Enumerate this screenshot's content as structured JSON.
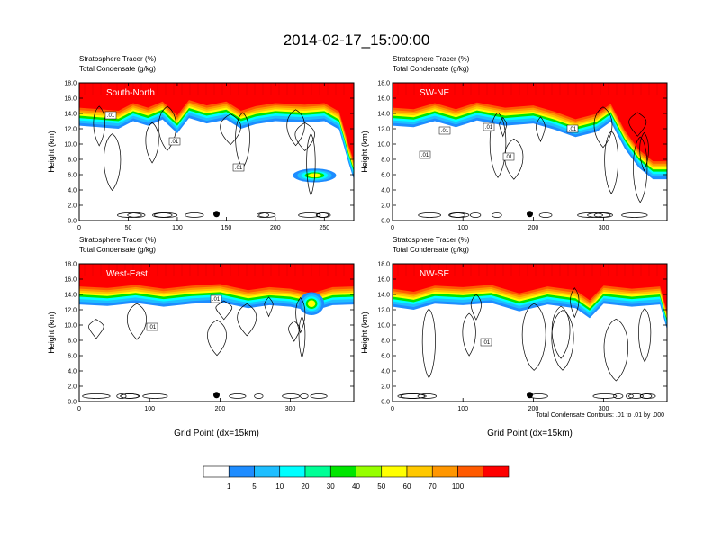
{
  "title": "2014-02-17_15:00:00",
  "footnote": "Total Condensate Contours: .01 to .01 by .000",
  "chart_data": {
    "type": "heatmap",
    "panels": [
      {
        "label": "South-North",
        "header_line1": "Stratosphere Tracer   (%)",
        "header_line2": "Total Condensate   (g/kg)",
        "ylabel": "Height (km)",
        "xlabel": "",
        "xlim": [
          0,
          280
        ],
        "xticks": [
          "0",
          "50",
          "100",
          "150",
          "200",
          "250"
        ],
        "ylim": [
          0,
          18
        ],
        "yticks": [
          "0.0",
          "2.0",
          "4.0",
          "6.0",
          "8.0",
          "10.0",
          "12.0",
          "14.0",
          "16.0",
          "18.0"
        ],
        "tropopause_km": [
          [
            0,
            15.0
          ],
          [
            20,
            14.8
          ],
          [
            40,
            14.6
          ],
          [
            55,
            15.6
          ],
          [
            70,
            15.0
          ],
          [
            85,
            15.8
          ],
          [
            100,
            14.0
          ],
          [
            112,
            16.0
          ],
          [
            130,
            15.3
          ],
          [
            150,
            15.8
          ],
          [
            165,
            14.6
          ],
          [
            180,
            15.2
          ],
          [
            200,
            15.6
          ],
          [
            230,
            15.4
          ],
          [
            250,
            15.6
          ],
          [
            265,
            14.5
          ],
          [
            275,
            10.0
          ],
          [
            280,
            8.0
          ]
        ],
        "blob": {
          "x": 240,
          "y_km": 5.9,
          "rx": 22,
          "ry_km": 0.9
        },
        "contour_labels": [
          ".01",
          ".01",
          ".01"
        ],
        "marker_x": 140
      },
      {
        "label": "SW-NE",
        "header_line1": "Stratosphere Tracer   (%)",
        "header_line2": "Total Condensate   (g/kg)",
        "ylabel": "Height (km)",
        "xlabel": "",
        "xlim": [
          0,
          390
        ],
        "xticks": [
          "0",
          "100",
          "200",
          "300"
        ],
        "ylim": [
          0,
          18
        ],
        "yticks": [
          "0.0",
          "2.0",
          "4.0",
          "6.0",
          "8.0",
          "10.0",
          "12.0",
          "14.0",
          "16.0",
          "18.0"
        ],
        "tropopause_km": [
          [
            0,
            15.0
          ],
          [
            30,
            14.8
          ],
          [
            60,
            15.6
          ],
          [
            90,
            14.8
          ],
          [
            120,
            15.7
          ],
          [
            160,
            15.0
          ],
          [
            200,
            15.3
          ],
          [
            230,
            14.5
          ],
          [
            260,
            13.5
          ],
          [
            290,
            14.2
          ],
          [
            310,
            15.5
          ],
          [
            330,
            12.0
          ],
          [
            350,
            9.5
          ],
          [
            370,
            8.0
          ],
          [
            390,
            8.0
          ]
        ],
        "blob": null,
        "contour_labels": [
          ".01",
          ".01",
          ".01",
          ".01",
          ".01"
        ],
        "marker_x": 195
      },
      {
        "label": "West-East",
        "header_line1": "Stratosphere Tracer   (%)",
        "header_line2": "Total Condensate   (g/kg)",
        "ylabel": "Height (km)",
        "xlabel": "Grid Point (dx=15km)",
        "xlim": [
          0,
          390
        ],
        "xticks": [
          "0",
          "100",
          "200",
          "300"
        ],
        "ylim": [
          0,
          18
        ],
        "yticks": [
          "0.0",
          "2.0",
          "4.0",
          "6.0",
          "8.0",
          "10.0",
          "12.0",
          "14.0",
          "16.0",
          "18.0"
        ],
        "tropopause_km": [
          [
            0,
            15.3
          ],
          [
            40,
            15.1
          ],
          [
            80,
            15.5
          ],
          [
            120,
            15.0
          ],
          [
            160,
            15.4
          ],
          [
            200,
            15.6
          ],
          [
            240,
            14.8
          ],
          [
            270,
            15.2
          ],
          [
            300,
            15.0
          ],
          [
            330,
            14.4
          ],
          [
            360,
            15.2
          ],
          [
            390,
            15.3
          ]
        ],
        "blob": {
          "x": 330,
          "y_km": 12.8,
          "rx": 18,
          "ry_km": 1.5
        },
        "contour_labels": [
          ".01",
          ".01"
        ],
        "marker_x": 195
      },
      {
        "label": "NW-SE",
        "header_line1": "Stratosphere Tracer   (%)",
        "header_line2": "Total Condensate   (g/kg)",
        "ylabel": "Height (km)",
        "xlabel": "Grid Point (dx=15km)",
        "xlim": [
          0,
          390
        ],
        "xticks": [
          "0",
          "100",
          "200",
          "300"
        ],
        "ylim": [
          0,
          18
        ],
        "yticks": [
          "0.0",
          "2.0",
          "4.0",
          "6.0",
          "8.0",
          "10.0",
          "12.0",
          "14.0",
          "16.0",
          "18.0"
        ],
        "tropopause_km": [
          [
            0,
            15.0
          ],
          [
            30,
            14.6
          ],
          [
            60,
            15.4
          ],
          [
            100,
            15.2
          ],
          [
            140,
            15.5
          ],
          [
            180,
            14.4
          ],
          [
            220,
            15.3
          ],
          [
            260,
            14.8
          ],
          [
            280,
            13.5
          ],
          [
            300,
            15.4
          ],
          [
            340,
            15.0
          ],
          [
            380,
            15.3
          ],
          [
            390,
            12.0
          ]
        ],
        "blob": null,
        "contour_labels": [
          ".01"
        ],
        "marker_x": 195
      }
    ],
    "colorbar": {
      "levels": [
        "1",
        "5",
        "10",
        "20",
        "30",
        "40",
        "50",
        "60",
        "70",
        "100"
      ],
      "colors": [
        "#ffffff",
        "#1e8cff",
        "#1ebeff",
        "#00ffff",
        "#00ff96",
        "#00e600",
        "#96ff00",
        "#ffff00",
        "#ffc800",
        "#ff9600",
        "#ff5a00",
        "#ff0000"
      ]
    }
  }
}
